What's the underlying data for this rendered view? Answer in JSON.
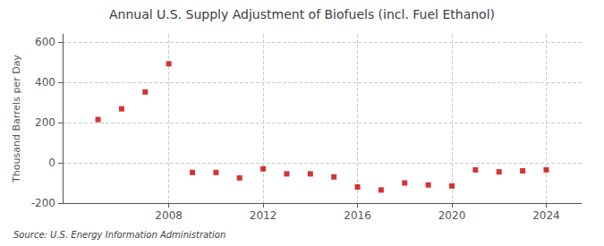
{
  "chart_data": {
    "type": "scatter",
    "title": "Annual U.S. Supply Adjustment of Biofuels (incl. Fuel Ethanol)",
    "ylabel": "Thousand Barrels per Day",
    "annotations": [
      "Source: U.S. Energy Information Administration"
    ],
    "x": [
      2005,
      2006,
      2007,
      2008,
      2009,
      2010,
      2011,
      2012,
      2013,
      2014,
      2015,
      2016,
      2017,
      2018,
      2019,
      2020,
      2021,
      2022,
      2023,
      2024
    ],
    "values": [
      215,
      268,
      352,
      492,
      -48,
      -48,
      -75,
      -30,
      -55,
      -55,
      -70,
      -120,
      -135,
      -100,
      -110,
      -115,
      -35,
      -45,
      -40,
      -35
    ],
    "color": "#cc0000",
    "marker": "square",
    "xlim": [
      2003.5,
      2025.5
    ],
    "xticks": [
      2008,
      2012,
      2016,
      2020,
      2024
    ],
    "ylim": [
      -200,
      640
    ],
    "yticks": [
      -200,
      0,
      200,
      400,
      600
    ],
    "grid": true
  }
}
